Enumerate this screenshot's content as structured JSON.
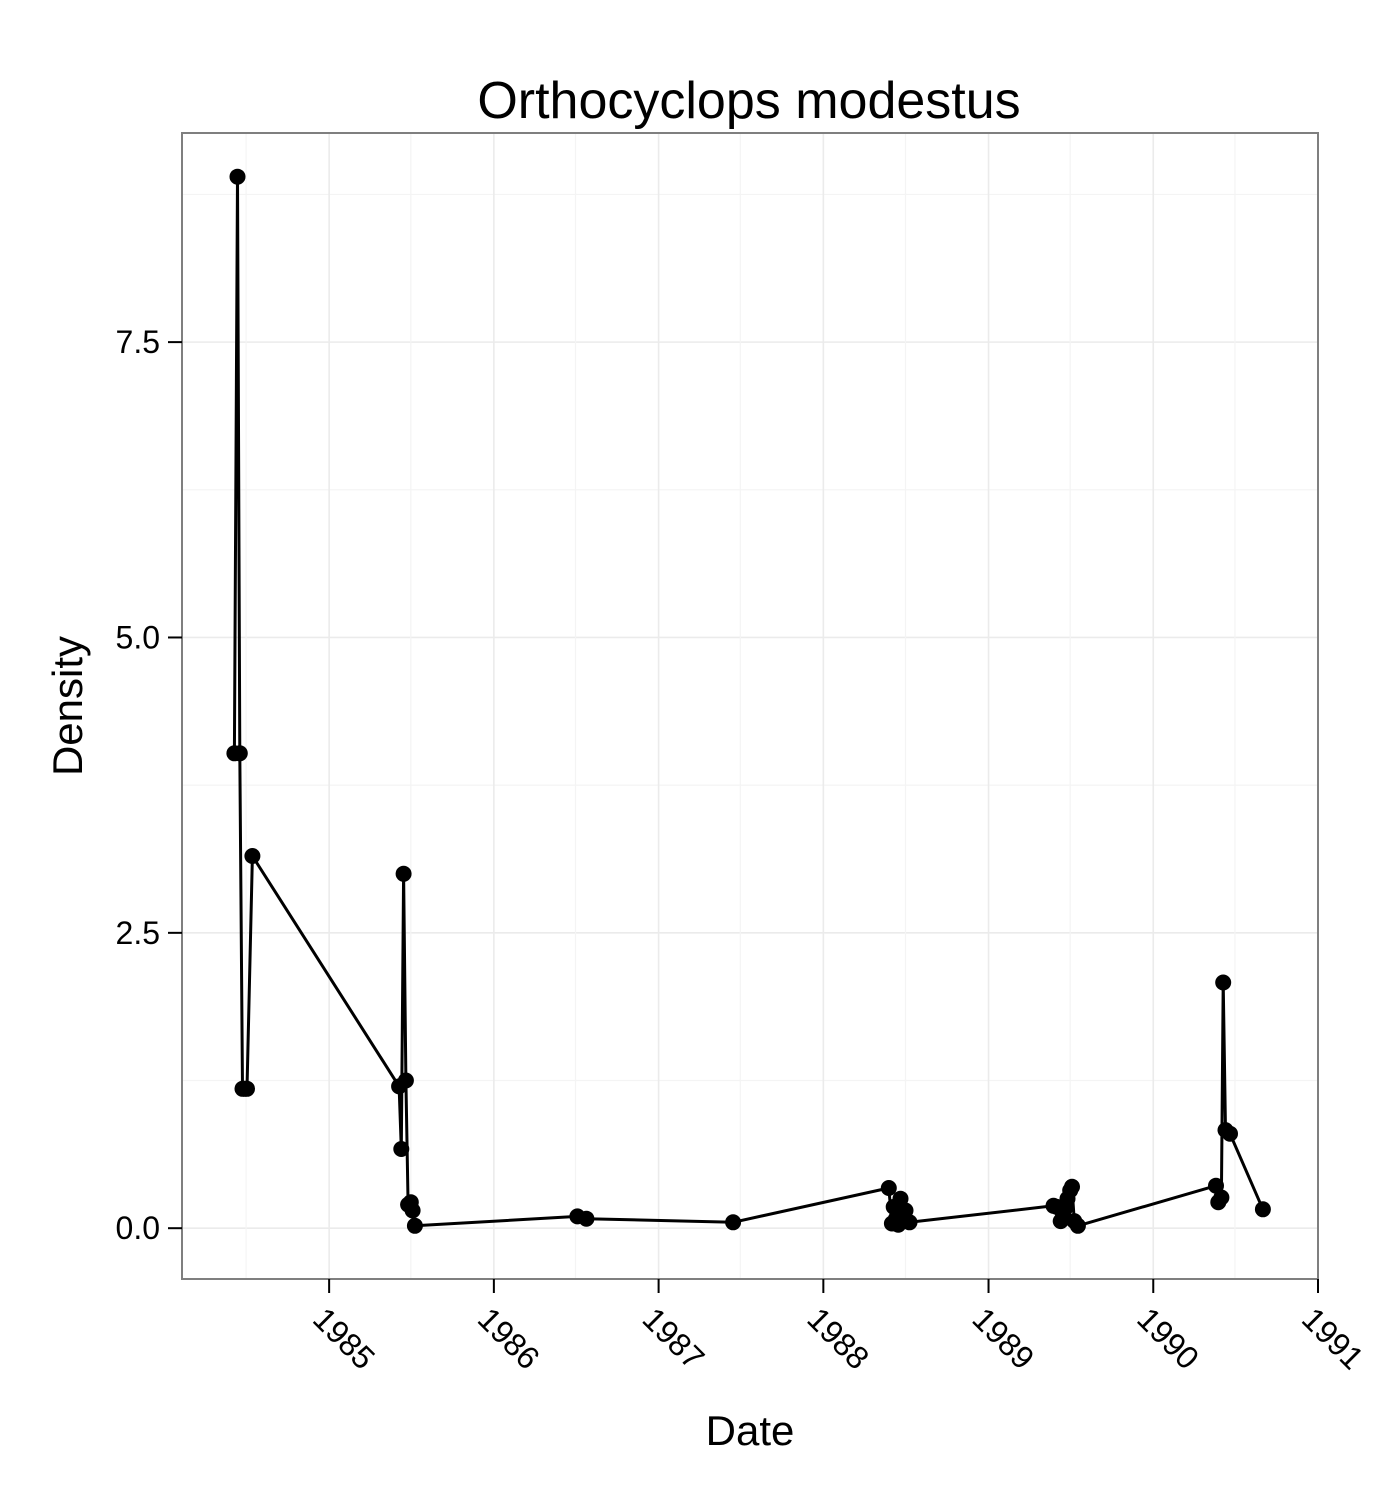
{
  "chart_data": {
    "type": "line",
    "title": "Orthocyclops modestus",
    "xlabel": "Date",
    "ylabel": "Density",
    "x_tick_labels": [
      "1985",
      "1986",
      "1987",
      "1988",
      "1989",
      "1990",
      "1991"
    ],
    "y_tick_labels": [
      "0.0",
      "2.5",
      "5.0",
      "7.5"
    ],
    "xlim": [
      "1984-02-10",
      "1991-01-01"
    ],
    "ylim": [
      -0.43,
      9.27
    ],
    "grid": true,
    "legend": "none",
    "series": [
      {
        "x": [
          "1984-06-05",
          "1984-06-12",
          "1984-06-17",
          "1984-06-23",
          "1984-06-28",
          "1984-07-03",
          "1984-07-15",
          "1985-06-05",
          "1985-06-10",
          "1985-06-15",
          "1985-06-20",
          "1985-06-25",
          "1985-07-01",
          "1985-07-05",
          "1985-07-10",
          "1986-07-05",
          "1986-07-25",
          "1987-06-15",
          "1988-05-25",
          "1988-06-01",
          "1988-06-05",
          "1988-06-10",
          "1988-06-15",
          "1988-06-20",
          "1988-06-25",
          "1988-07-01",
          "1988-07-05",
          "1988-07-10",
          "1989-05-25",
          "1989-06-01",
          "1989-06-10",
          "1989-06-15",
          "1989-06-20",
          "1989-06-25",
          "1989-07-01",
          "1989-07-05",
          "1989-07-10",
          "1989-07-18",
          "1990-05-20",
          "1990-05-25",
          "1990-06-01",
          "1990-06-05",
          "1990-06-10",
          "1990-06-20",
          "1990-09-01"
        ],
        "y": [
          4.02,
          8.9,
          4.02,
          1.18,
          1.18,
          1.18,
          3.15,
          1.2,
          0.67,
          3.0,
          1.25,
          0.2,
          0.22,
          0.15,
          0.02,
          0.1,
          0.08,
          0.05,
          0.34,
          0.04,
          0.18,
          0.08,
          0.03,
          0.25,
          0.12,
          0.15,
          0.06,
          0.05,
          0.19,
          0.18,
          0.06,
          0.12,
          0.17,
          0.25,
          0.32,
          0.35,
          0.06,
          0.02,
          0.36,
          0.22,
          0.26,
          2.08,
          0.83,
          0.8,
          0.16
        ]
      }
    ]
  }
}
